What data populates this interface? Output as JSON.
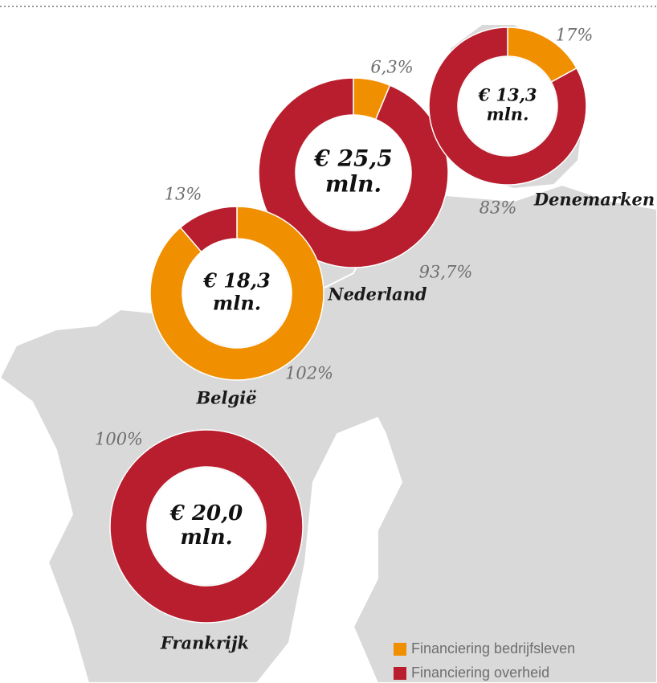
{
  "chart_data": {
    "type": "donut",
    "legend": [
      {
        "name": "Financiering bedrijfsleven",
        "color": "#f08f00"
      },
      {
        "name": "Financiering overheid",
        "color": "#b81e2d"
      }
    ],
    "charts": [
      {
        "country": "Nederland",
        "center_label": [
          "€ 25,5",
          "mln."
        ],
        "values": [
          6.3,
          93.7
        ],
        "value_labels": [
          "6,3%",
          "93,7%"
        ]
      },
      {
        "country": "Denemarken",
        "center_label": [
          "€ 13,3",
          "mln."
        ],
        "values": [
          17,
          83
        ],
        "value_labels": [
          "17%",
          "83%"
        ]
      },
      {
        "country": "België",
        "center_label": [
          "€ 18,3",
          "mln."
        ],
        "values": [
          102,
          13
        ],
        "value_labels": [
          "102%",
          "13%"
        ]
      },
      {
        "country": "Frankrijk",
        "center_label": [
          "€ 20,0",
          "mln."
        ],
        "values": [
          0,
          100
        ],
        "value_labels": [
          null,
          "100%"
        ]
      }
    ]
  }
}
